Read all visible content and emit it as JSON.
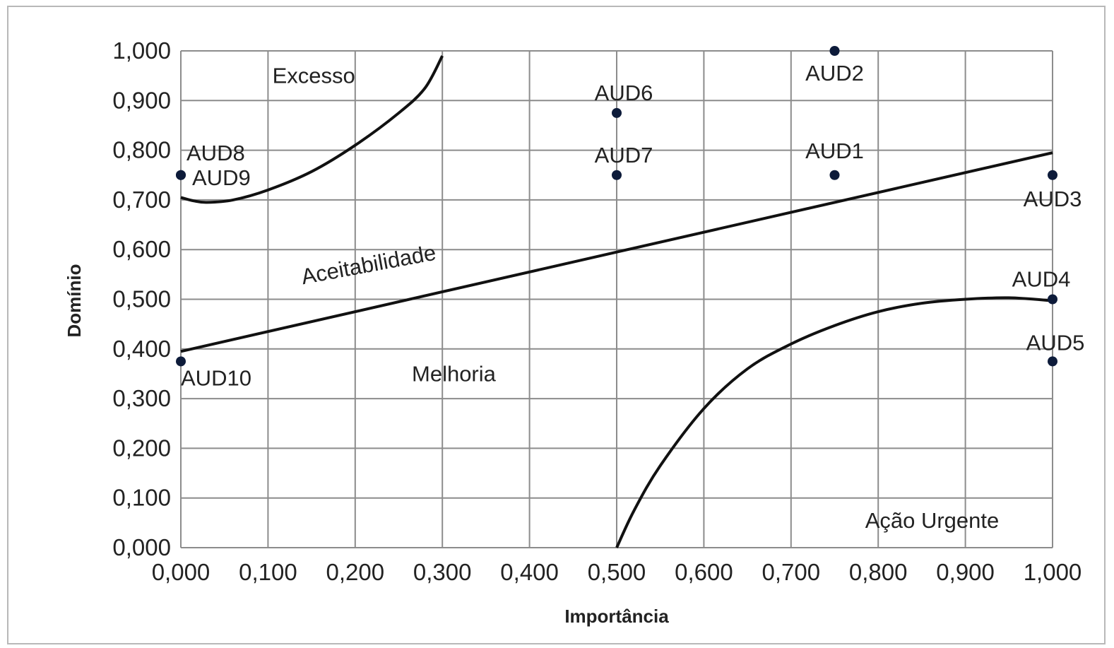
{
  "chart_data": {
    "type": "scatter",
    "title": "",
    "xlabel": "Importância",
    "ylabel": "Domínio",
    "xlim": [
      0,
      1
    ],
    "ylim": [
      0,
      1
    ],
    "xticks": [
      "0,000",
      "0,100",
      "0,200",
      "0,300",
      "0,400",
      "0,500",
      "0,600",
      "0,700",
      "0,800",
      "0,900",
      "1,000"
    ],
    "yticks": [
      "0,000",
      "0,100",
      "0,200",
      "0,300",
      "0,400",
      "0,500",
      "0,600",
      "0,700",
      "0,800",
      "0,900",
      "1,000"
    ],
    "grid": true,
    "point_color": "#0d1b3a",
    "points": [
      {
        "label": "AUD1",
        "x": 0.75,
        "y": 0.75
      },
      {
        "label": "AUD2",
        "x": 0.75,
        "y": 1.0
      },
      {
        "label": "AUD3",
        "x": 1.0,
        "y": 0.75
      },
      {
        "label": "AUD4",
        "x": 1.0,
        "y": 0.5
      },
      {
        "label": "AUD5",
        "x": 1.0,
        "y": 0.375
      },
      {
        "label": "AUD6",
        "x": 0.5,
        "y": 0.875
      },
      {
        "label": "AUD7",
        "x": 0.5,
        "y": 0.75
      },
      {
        "label": "AUD8",
        "x": 0.0,
        "y": 0.75
      },
      {
        "label": "AUD9",
        "x": 0.0,
        "y": 0.75
      },
      {
        "label": "AUD10",
        "x": 0.0,
        "y": 0.375
      }
    ],
    "curves": [
      {
        "points": [
          [
            0,
            0.705
          ],
          [
            0.015,
            0.698
          ],
          [
            0.03,
            0.695
          ],
          [
            0.06,
            0.7
          ],
          [
            0.1,
            0.72
          ],
          [
            0.15,
            0.757
          ],
          [
            0.2,
            0.81
          ],
          [
            0.25,
            0.875
          ],
          [
            0.28,
            0.925
          ],
          [
            0.3,
            0.99
          ]
        ]
      },
      {
        "points": [
          [
            0,
            0.395
          ],
          [
            1,
            0.795
          ]
        ]
      },
      {
        "points": [
          [
            0.5,
            0
          ],
          [
            0.52,
            0.075
          ],
          [
            0.55,
            0.165
          ],
          [
            0.6,
            0.28
          ],
          [
            0.65,
            0.36
          ],
          [
            0.7,
            0.41
          ],
          [
            0.75,
            0.447
          ],
          [
            0.8,
            0.475
          ],
          [
            0.85,
            0.492
          ],
          [
            0.9,
            0.5
          ],
          [
            0.95,
            0.503
          ],
          [
            1,
            0.497
          ]
        ]
      }
    ],
    "regions": [
      {
        "text": "Excesso",
        "x": 0.105,
        "y": 0.935
      },
      {
        "text": "Aceitabilidade",
        "x": 0.14,
        "y": 0.53
      },
      {
        "text": "Melhoria",
        "x": 0.265,
        "y": 0.335
      },
      {
        "text": "Ação Urgente",
        "x": 0.785,
        "y": 0.04
      }
    ]
  }
}
